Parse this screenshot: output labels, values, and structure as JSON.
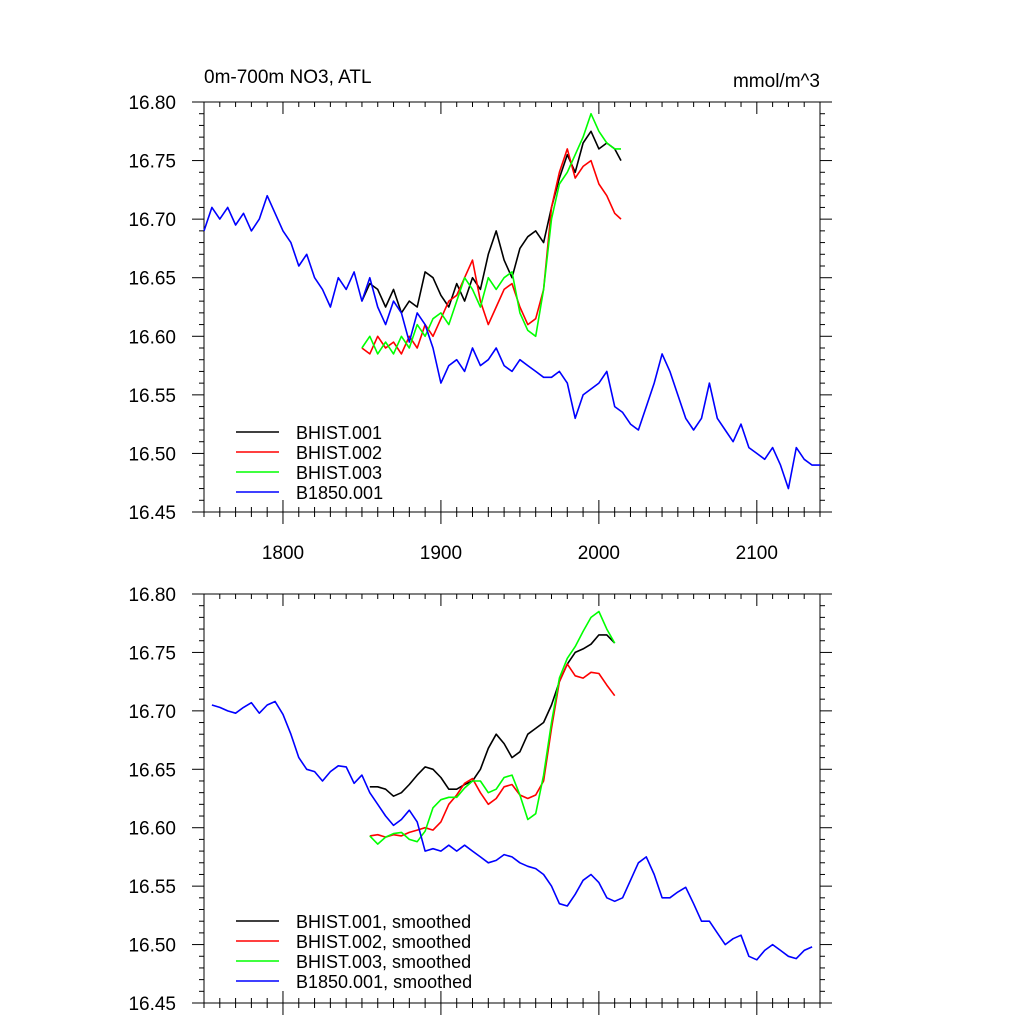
{
  "chart_data": [
    {
      "type": "line",
      "title": "0m-700m NO3, ATL",
      "units": "mmol/m^3",
      "xlim": [
        1750,
        2140
      ],
      "ylim": [
        16.45,
        16.8
      ],
      "xticks": [
        1800,
        1900,
        2000,
        2100
      ],
      "yticks": [
        16.45,
        16.5,
        16.55,
        16.6,
        16.65,
        16.7,
        16.75,
        16.8
      ],
      "ytick_labels": [
        "16.45",
        "16.50",
        "16.55",
        "16.60",
        "16.65",
        "16.70",
        "16.75",
        "16.80"
      ],
      "xtick_labels": [
        "1800",
        "1900",
        "2000",
        "2100"
      ],
      "show_xtick_labels": true,
      "legend_position": "bottom-left",
      "series": [
        {
          "name": "BHIST.001",
          "color": "#000000",
          "x": [
            1850,
            1855,
            1860,
            1865,
            1870,
            1875,
            1880,
            1885,
            1890,
            1895,
            1900,
            1905,
            1910,
            1915,
            1920,
            1925,
            1930,
            1935,
            1940,
            1945,
            1950,
            1955,
            1960,
            1965,
            1970,
            1975,
            1980,
            1985,
            1990,
            1995,
            2000,
            2005,
            2010,
            2014
          ],
          "values": [
            16.63,
            16.645,
            16.64,
            16.625,
            16.64,
            16.62,
            16.63,
            16.625,
            16.655,
            16.65,
            16.635,
            16.625,
            16.645,
            16.63,
            16.65,
            16.64,
            16.67,
            16.69,
            16.665,
            16.65,
            16.675,
            16.685,
            16.69,
            16.68,
            16.71,
            16.735,
            16.755,
            16.74,
            16.765,
            16.775,
            16.76,
            16.765,
            16.76,
            16.75
          ]
        },
        {
          "name": "BHIST.002",
          "color": "#ff0000",
          "x": [
            1850,
            1855,
            1860,
            1865,
            1870,
            1875,
            1880,
            1885,
            1890,
            1895,
            1900,
            1905,
            1910,
            1915,
            1920,
            1925,
            1930,
            1935,
            1940,
            1945,
            1950,
            1955,
            1960,
            1965,
            1970,
            1975,
            1980,
            1985,
            1990,
            1995,
            2000,
            2005,
            2010,
            2014
          ],
          "values": [
            16.59,
            16.585,
            16.6,
            16.59,
            16.595,
            16.585,
            16.6,
            16.59,
            16.61,
            16.6,
            16.615,
            16.63,
            16.635,
            16.65,
            16.665,
            16.63,
            16.61,
            16.625,
            16.64,
            16.645,
            16.625,
            16.61,
            16.615,
            16.64,
            16.71,
            16.74,
            16.76,
            16.735,
            16.745,
            16.75,
            16.73,
            16.72,
            16.705,
            16.7
          ]
        },
        {
          "name": "BHIST.003",
          "color": "#00ff00",
          "x": [
            1850,
            1855,
            1860,
            1865,
            1870,
            1875,
            1880,
            1885,
            1890,
            1895,
            1900,
            1905,
            1910,
            1915,
            1920,
            1925,
            1930,
            1935,
            1940,
            1945,
            1950,
            1955,
            1960,
            1965,
            1970,
            1975,
            1980,
            1985,
            1990,
            1995,
            2000,
            2005,
            2010,
            2014
          ],
          "values": [
            16.59,
            16.6,
            16.585,
            16.595,
            16.585,
            16.6,
            16.59,
            16.61,
            16.6,
            16.615,
            16.62,
            16.61,
            16.63,
            16.65,
            16.64,
            16.625,
            16.65,
            16.64,
            16.65,
            16.655,
            16.62,
            16.605,
            16.6,
            16.64,
            16.7,
            16.73,
            16.74,
            16.755,
            16.77,
            16.79,
            16.775,
            16.765,
            16.76,
            16.76
          ]
        },
        {
          "name": "B1850.001",
          "color": "#0000ff",
          "x": [
            1750,
            1755,
            1760,
            1765,
            1770,
            1775,
            1780,
            1785,
            1790,
            1795,
            1800,
            1805,
            1810,
            1815,
            1820,
            1825,
            1830,
            1835,
            1840,
            1845,
            1850,
            1855,
            1860,
            1865,
            1870,
            1875,
            1880,
            1885,
            1890,
            1895,
            1900,
            1905,
            1910,
            1915,
            1920,
            1925,
            1930,
            1935,
            1940,
            1945,
            1950,
            1955,
            1960,
            1965,
            1970,
            1975,
            1980,
            1985,
            1990,
            1995,
            2000,
            2005,
            2010,
            2015,
            2020,
            2025,
            2030,
            2035,
            2040,
            2045,
            2050,
            2055,
            2060,
            2065,
            2070,
            2075,
            2080,
            2085,
            2090,
            2095,
            2100,
            2105,
            2110,
            2115,
            2120,
            2125,
            2130,
            2135,
            2140
          ],
          "values": [
            16.69,
            16.71,
            16.7,
            16.71,
            16.695,
            16.705,
            16.69,
            16.7,
            16.72,
            16.705,
            16.69,
            16.68,
            16.66,
            16.67,
            16.65,
            16.64,
            16.625,
            16.65,
            16.64,
            16.655,
            16.63,
            16.65,
            16.625,
            16.61,
            16.63,
            16.62,
            16.595,
            16.62,
            16.61,
            16.59,
            16.56,
            16.575,
            16.58,
            16.57,
            16.59,
            16.575,
            16.58,
            16.59,
            16.575,
            16.57,
            16.58,
            16.575,
            16.57,
            16.565,
            16.565,
            16.57,
            16.56,
            16.53,
            16.55,
            16.555,
            16.56,
            16.57,
            16.54,
            16.535,
            16.525,
            16.52,
            16.54,
            16.56,
            16.585,
            16.57,
            16.55,
            16.53,
            16.52,
            16.53,
            16.56,
            16.53,
            16.52,
            16.51,
            16.525,
            16.505,
            16.5,
            16.495,
            16.505,
            16.49,
            16.47,
            16.505,
            16.495,
            16.49,
            16.49
          ]
        }
      ]
    },
    {
      "type": "line",
      "title": "",
      "units": "",
      "xlim": [
        1750,
        2140
      ],
      "ylim": [
        16.45,
        16.8
      ],
      "xticks": [
        1800,
        1900,
        2000,
        2100
      ],
      "yticks": [
        16.45,
        16.5,
        16.55,
        16.6,
        16.65,
        16.7,
        16.75,
        16.8
      ],
      "ytick_labels": [
        "16.45",
        "16.50",
        "16.55",
        "16.60",
        "16.65",
        "16.70",
        "16.75",
        "16.80"
      ],
      "xtick_labels": [],
      "show_xtick_labels": false,
      "legend_position": "bottom-left",
      "series": [
        {
          "name": "BHIST.001, smoothed",
          "color": "#000000",
          "x": [
            1855,
            1860,
            1865,
            1870,
            1875,
            1880,
            1885,
            1890,
            1895,
            1900,
            1905,
            1910,
            1915,
            1920,
            1925,
            1930,
            1935,
            1940,
            1945,
            1950,
            1955,
            1960,
            1965,
            1970,
            1975,
            1980,
            1985,
            1990,
            1995,
            2000,
            2005,
            2010
          ],
          "values": [
            16.635,
            16.635,
            16.633,
            16.627,
            16.63,
            16.637,
            16.645,
            16.652,
            16.65,
            16.643,
            16.633,
            16.633,
            16.637,
            16.64,
            16.65,
            16.668,
            16.68,
            16.672,
            16.66,
            16.665,
            16.68,
            16.685,
            16.69,
            16.705,
            16.725,
            16.74,
            16.75,
            16.753,
            16.757,
            16.765,
            16.765,
            16.758
          ]
        },
        {
          "name": "BHIST.002, smoothed",
          "color": "#ff0000",
          "x": [
            1855,
            1860,
            1865,
            1870,
            1875,
            1880,
            1885,
            1890,
            1895,
            1900,
            1905,
            1910,
            1915,
            1920,
            1925,
            1930,
            1935,
            1940,
            1945,
            1950,
            1955,
            1960,
            1965,
            1970,
            1975,
            1980,
            1985,
            1990,
            1995,
            2000,
            2005,
            2010
          ],
          "values": [
            16.593,
            16.594,
            16.592,
            16.594,
            16.593,
            16.596,
            16.598,
            16.6,
            16.598,
            16.605,
            16.62,
            16.628,
            16.638,
            16.642,
            16.63,
            16.62,
            16.625,
            16.635,
            16.637,
            16.628,
            16.625,
            16.628,
            16.64,
            16.685,
            16.725,
            16.74,
            16.73,
            16.728,
            16.733,
            16.732,
            16.722,
            16.713
          ]
        },
        {
          "name": "BHIST.003, smoothed",
          "color": "#00ff00",
          "x": [
            1855,
            1860,
            1865,
            1870,
            1875,
            1880,
            1885,
            1890,
            1895,
            1900,
            1905,
            1910,
            1915,
            1920,
            1925,
            1930,
            1935,
            1940,
            1945,
            1950,
            1955,
            1960,
            1965,
            1970,
            1975,
            1980,
            1985,
            1990,
            1995,
            2000,
            2005,
            2010
          ],
          "values": [
            16.593,
            16.586,
            16.592,
            16.595,
            16.596,
            16.59,
            16.588,
            16.597,
            16.617,
            16.624,
            16.626,
            16.626,
            16.634,
            16.64,
            16.64,
            16.63,
            16.633,
            16.643,
            16.645,
            16.628,
            16.607,
            16.612,
            16.645,
            16.69,
            16.728,
            16.745,
            16.755,
            16.768,
            16.78,
            16.785,
            16.77,
            16.758
          ]
        },
        {
          "name": "B1850.001, smoothed",
          "color": "#0000ff",
          "x": [
            1755,
            1760,
            1765,
            1770,
            1775,
            1780,
            1785,
            1790,
            1795,
            1800,
            1805,
            1810,
            1815,
            1820,
            1825,
            1830,
            1835,
            1840,
            1845,
            1850,
            1855,
            1860,
            1865,
            1870,
            1875,
            1880,
            1885,
            1890,
            1895,
            1900,
            1905,
            1910,
            1915,
            1920,
            1925,
            1930,
            1935,
            1940,
            1945,
            1950,
            1955,
            1960,
            1965,
            1970,
            1975,
            1980,
            1985,
            1990,
            1995,
            2000,
            2005,
            2010,
            2015,
            2020,
            2025,
            2030,
            2035,
            2040,
            2045,
            2050,
            2055,
            2060,
            2065,
            2070,
            2075,
            2080,
            2085,
            2090,
            2095,
            2100,
            2105,
            2110,
            2115,
            2120,
            2125,
            2130,
            2135
          ],
          "values": [
            16.705,
            16.703,
            16.7,
            16.698,
            16.703,
            16.707,
            16.698,
            16.705,
            16.708,
            16.697,
            16.68,
            16.66,
            16.65,
            16.648,
            16.64,
            16.648,
            16.653,
            16.652,
            16.638,
            16.645,
            16.63,
            16.62,
            16.61,
            16.602,
            16.607,
            16.615,
            16.605,
            16.58,
            16.582,
            16.58,
            16.585,
            16.58,
            16.585,
            16.58,
            16.575,
            16.57,
            16.572,
            16.577,
            16.575,
            16.57,
            16.567,
            16.565,
            16.56,
            16.55,
            16.535,
            16.533,
            16.543,
            16.555,
            16.56,
            16.553,
            16.54,
            16.537,
            16.54,
            16.555,
            16.57,
            16.575,
            16.56,
            16.54,
            16.54,
            16.545,
            16.549,
            16.535,
            16.52,
            16.52,
            16.51,
            16.5,
            16.505,
            16.508,
            16.49,
            16.487,
            16.495,
            16.5,
            16.495,
            16.49,
            16.488,
            16.495,
            16.498
          ]
        }
      ]
    }
  ]
}
